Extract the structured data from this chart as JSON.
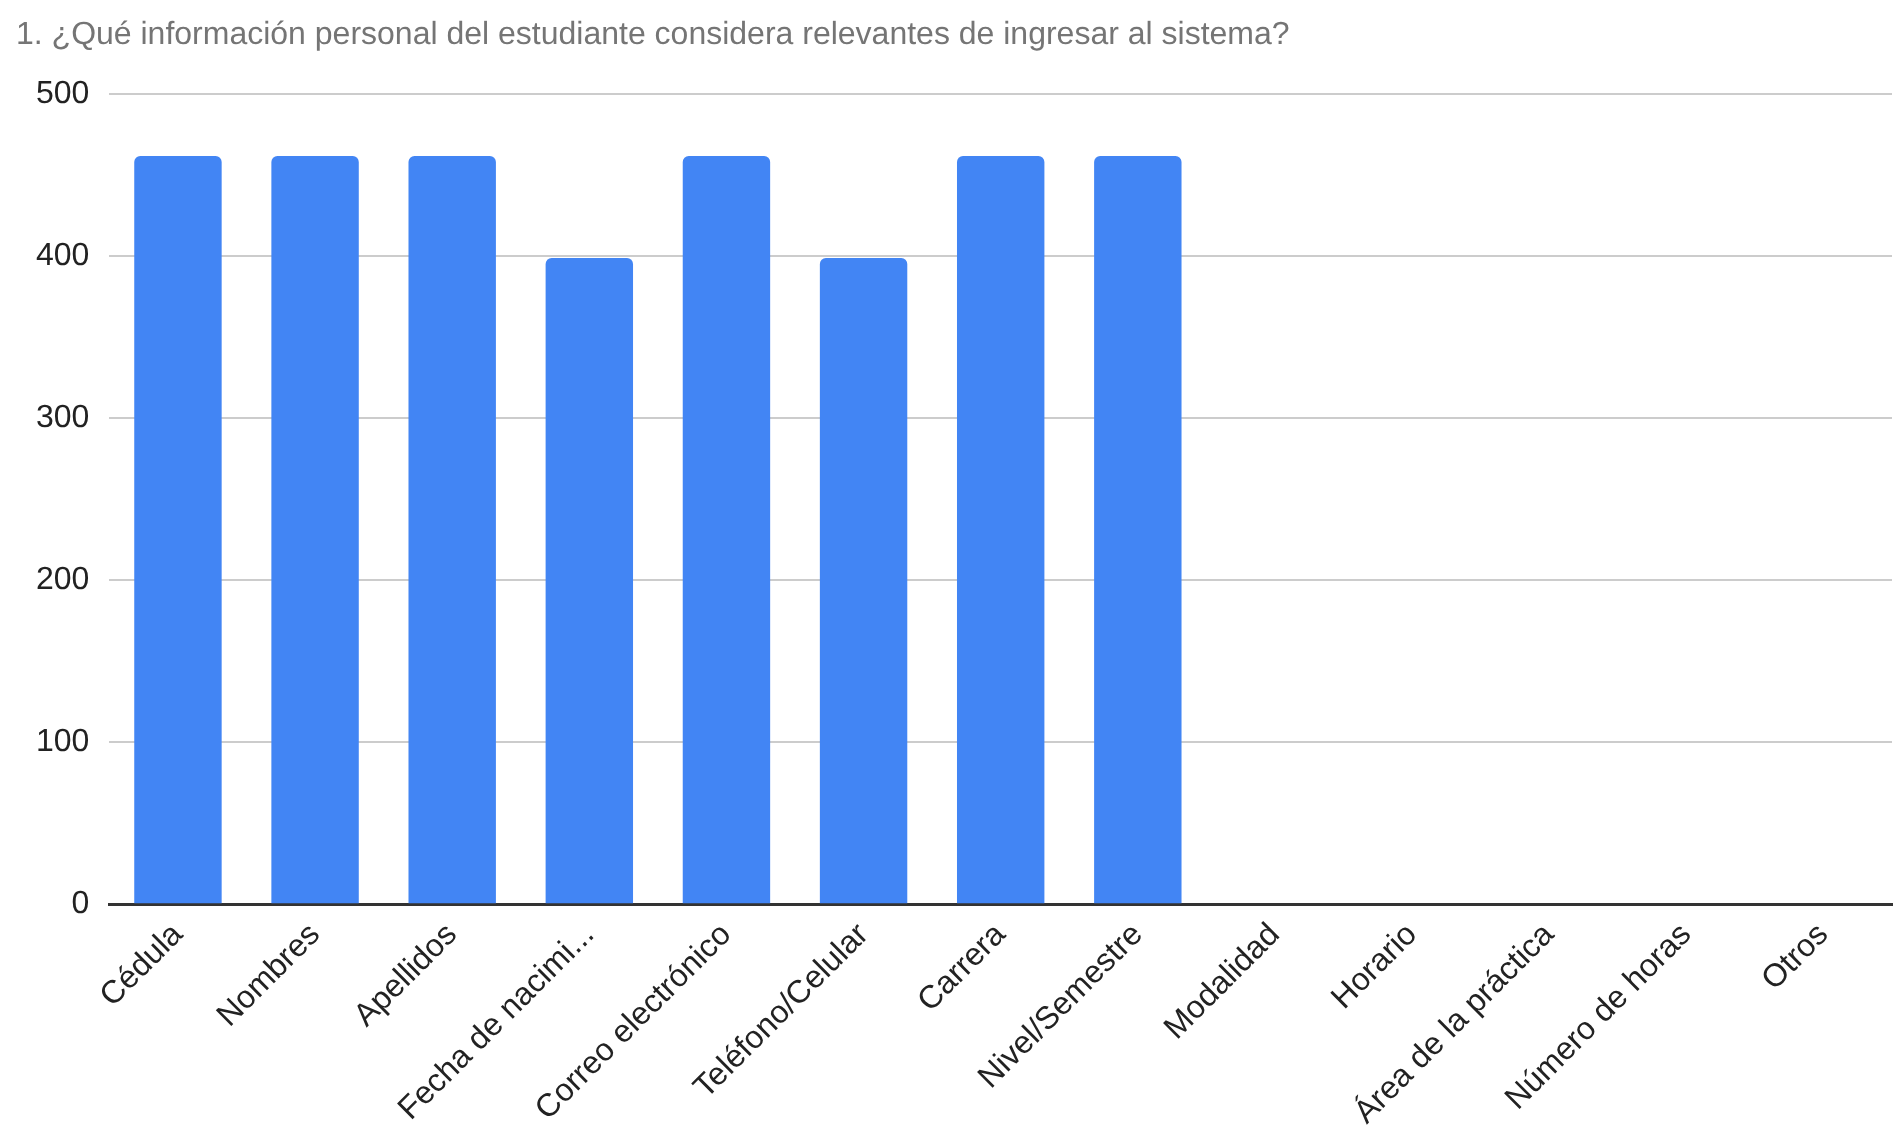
{
  "chart_data": {
    "type": "bar",
    "title": "1. ¿Qué información personal del estudiante considera relevantes de ingresar al sistema?",
    "categories": [
      "Cédula",
      "Nombres",
      "Apellidos",
      "Fecha de nacimi...",
      "Correo electrónico",
      "Teléfono/Celular",
      "Carrera",
      "Nivel/Semestre",
      "Modalidad",
      "Horario",
      "Área de la práctica",
      "Número de horas",
      "Otros"
    ],
    "values": [
      462,
      462,
      462,
      399,
      462,
      399,
      462,
      462,
      0,
      0,
      0,
      0,
      0
    ],
    "color": "#4285f4",
    "ylim": [
      0,
      500
    ],
    "yticks": [
      0,
      100,
      200,
      300,
      400,
      500
    ],
    "grid": "y",
    "legend": false
  }
}
